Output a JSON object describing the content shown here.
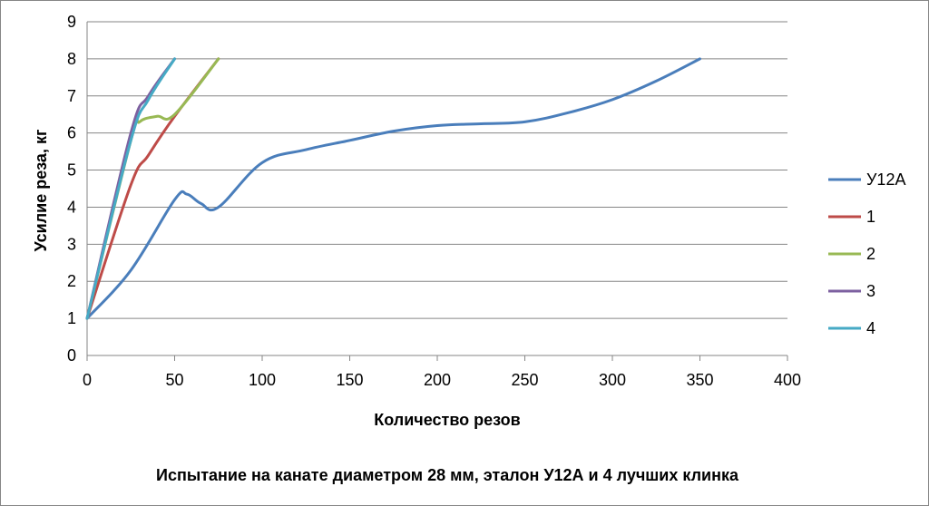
{
  "chart_data": {
    "type": "line",
    "title": "Испытание на канате диаметром 28 мм, эталон У12А и 4 лучших клинка",
    "xlabel": "Количество резов",
    "ylabel": "Усилие реза, кг",
    "xlim": [
      0,
      400
    ],
    "ylim": [
      0,
      9
    ],
    "x_ticks": [
      0,
      50,
      100,
      150,
      200,
      250,
      300,
      350,
      400
    ],
    "y_ticks": [
      0,
      1,
      2,
      3,
      4,
      5,
      6,
      7,
      8,
      9
    ],
    "grid": "horizontal",
    "legend_position": "right",
    "series": [
      {
        "name": "У12А",
        "color": "#4a7ebb",
        "points": [
          [
            0,
            1
          ],
          [
            25,
            2.3
          ],
          [
            50,
            4.2
          ],
          [
            57,
            4.35
          ],
          [
            65,
            4.1
          ],
          [
            75,
            4.0
          ],
          [
            100,
            5.2
          ],
          [
            125,
            5.55
          ],
          [
            150,
            5.8
          ],
          [
            175,
            6.05
          ],
          [
            200,
            6.2
          ],
          [
            225,
            6.25
          ],
          [
            250,
            6.3
          ],
          [
            275,
            6.55
          ],
          [
            300,
            6.9
          ],
          [
            325,
            7.4
          ],
          [
            350,
            8
          ]
        ]
      },
      {
        "name": "1",
        "color": "#be4b48",
        "points": [
          [
            0,
            1
          ],
          [
            25,
            4.6
          ],
          [
            35,
            5.4
          ],
          [
            50,
            6.45
          ],
          [
            75,
            8
          ]
        ]
      },
      {
        "name": "2",
        "color": "#98b954",
        "points": [
          [
            0,
            1
          ],
          [
            25,
            5.8
          ],
          [
            30,
            6.3
          ],
          [
            40,
            6.45
          ],
          [
            50,
            6.5
          ],
          [
            75,
            8
          ]
        ]
      },
      {
        "name": "3",
        "color": "#7d60a0",
        "points": [
          [
            0,
            1
          ],
          [
            25,
            6.0
          ],
          [
            35,
            7.0
          ],
          [
            50,
            8
          ]
        ]
      },
      {
        "name": "4",
        "color": "#46aac5",
        "points": [
          [
            0,
            1
          ],
          [
            25,
            5.8
          ],
          [
            35,
            6.9
          ],
          [
            50,
            8
          ]
        ]
      }
    ]
  }
}
